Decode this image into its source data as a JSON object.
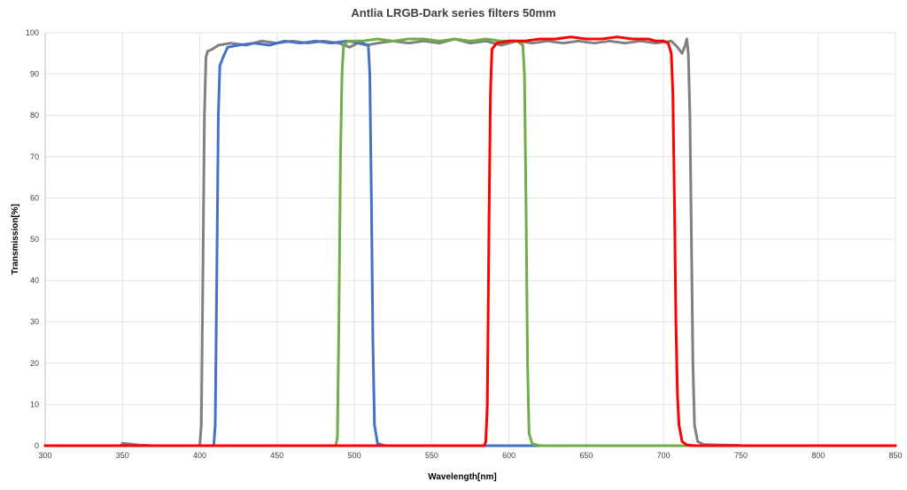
{
  "chart_data": {
    "type": "line",
    "title": "Antlia LRGB-Dark series filters 50mm",
    "xlabel": "Wavelength[nm]",
    "ylabel": "Transmission[%]",
    "xlim": [
      300,
      850
    ],
    "ylim": [
      0,
      100
    ],
    "xticks": [
      300,
      350,
      400,
      450,
      500,
      550,
      600,
      650,
      700,
      750,
      800,
      850
    ],
    "yticks": [
      0,
      10,
      20,
      30,
      40,
      50,
      60,
      70,
      80,
      90,
      100
    ],
    "grid": true,
    "legend": "none",
    "series": [
      {
        "color": "#808080",
        "points": [
          [
            300,
            0
          ],
          [
            349,
            0
          ],
          [
            350,
            0.6
          ],
          [
            355,
            0.4
          ],
          [
            360,
            0.2
          ],
          [
            370,
            0
          ],
          [
            400,
            0
          ],
          [
            401,
            5
          ],
          [
            402,
            40
          ],
          [
            403,
            80
          ],
          [
            404,
            94
          ],
          [
            405,
            95.5
          ],
          [
            408,
            96
          ],
          [
            412,
            97
          ],
          [
            420,
            97.5
          ],
          [
            430,
            97
          ],
          [
            440,
            98
          ],
          [
            450,
            97.5
          ],
          [
            460,
            98
          ],
          [
            470,
            97.5
          ],
          [
            480,
            98
          ],
          [
            490,
            97.5
          ],
          [
            497,
            96.5
          ],
          [
            502,
            97.5
          ],
          [
            508,
            97
          ],
          [
            515,
            97.5
          ],
          [
            525,
            98
          ],
          [
            535,
            97.5
          ],
          [
            545,
            98
          ],
          [
            555,
            97.5
          ],
          [
            565,
            98.5
          ],
          [
            575,
            97.5
          ],
          [
            585,
            98
          ],
          [
            595,
            97
          ],
          [
            605,
            98
          ],
          [
            615,
            97.5
          ],
          [
            625,
            98
          ],
          [
            635,
            97.5
          ],
          [
            645,
            98
          ],
          [
            655,
            97.5
          ],
          [
            665,
            98
          ],
          [
            675,
            97.5
          ],
          [
            685,
            98
          ],
          [
            695,
            97.5
          ],
          [
            705,
            98
          ],
          [
            709,
            96.5
          ],
          [
            712,
            95
          ],
          [
            714,
            97
          ],
          [
            715,
            98.5
          ],
          [
            716,
            95
          ],
          [
            717,
            80
          ],
          [
            718,
            50
          ],
          [
            719,
            20
          ],
          [
            720,
            5
          ],
          [
            722,
            1
          ],
          [
            726,
            0.3
          ],
          [
            735,
            0.2
          ],
          [
            748,
            0.1
          ],
          [
            750,
            0
          ],
          [
            850,
            0
          ]
        ]
      },
      {
        "color": "#4472c4",
        "points": [
          [
            300,
            0
          ],
          [
            409,
            0
          ],
          [
            410,
            5
          ],
          [
            411,
            40
          ],
          [
            412,
            80
          ],
          [
            413,
            92
          ],
          [
            415,
            94
          ],
          [
            418,
            96.5
          ],
          [
            425,
            97
          ],
          [
            435,
            97.5
          ],
          [
            445,
            97
          ],
          [
            455,
            98
          ],
          [
            465,
            97.5
          ],
          [
            475,
            98
          ],
          [
            485,
            97.5
          ],
          [
            495,
            98
          ],
          [
            505,
            97.5
          ],
          [
            509,
            97
          ],
          [
            510,
            90
          ],
          [
            511,
            60
          ],
          [
            512,
            25
          ],
          [
            513,
            5
          ],
          [
            515,
            0.5
          ],
          [
            520,
            0
          ],
          [
            850,
            0
          ]
        ]
      },
      {
        "color": "#70ad47",
        "points": [
          [
            300,
            0
          ],
          [
            488,
            0
          ],
          [
            489,
            2
          ],
          [
            490,
            30
          ],
          [
            491,
            70
          ],
          [
            492,
            90
          ],
          [
            493,
            97
          ],
          [
            496,
            98
          ],
          [
            505,
            98
          ],
          [
            515,
            98.5
          ],
          [
            525,
            98
          ],
          [
            535,
            98.5
          ],
          [
            545,
            98.5
          ],
          [
            555,
            98
          ],
          [
            565,
            98.5
          ],
          [
            575,
            98
          ],
          [
            585,
            98.5
          ],
          [
            595,
            98
          ],
          [
            605,
            98
          ],
          [
            609,
            97
          ],
          [
            610,
            90
          ],
          [
            611,
            60
          ],
          [
            612,
            20
          ],
          [
            613,
            3
          ],
          [
            615,
            0.5
          ],
          [
            620,
            0
          ],
          [
            850,
            0
          ]
        ]
      },
      {
        "color": "#ff0000",
        "points": [
          [
            300,
            0
          ],
          [
            584,
            0
          ],
          [
            585,
            1
          ],
          [
            586,
            10
          ],
          [
            587,
            50
          ],
          [
            588,
            85
          ],
          [
            589,
            96
          ],
          [
            592,
            97.5
          ],
          [
            600,
            98
          ],
          [
            610,
            98
          ],
          [
            620,
            98.5
          ],
          [
            630,
            98.5
          ],
          [
            640,
            99
          ],
          [
            650,
            98.5
          ],
          [
            660,
            98.5
          ],
          [
            670,
            99
          ],
          [
            680,
            98.5
          ],
          [
            690,
            98.5
          ],
          [
            695,
            98
          ],
          [
            700,
            98
          ],
          [
            703,
            97.5
          ],
          [
            705,
            95
          ],
          [
            706,
            85
          ],
          [
            707,
            60
          ],
          [
            708,
            30
          ],
          [
            709,
            12
          ],
          [
            710,
            5
          ],
          [
            712,
            1
          ],
          [
            715,
            0.2
          ],
          [
            720,
            0
          ],
          [
            850,
            0
          ]
        ]
      }
    ]
  }
}
